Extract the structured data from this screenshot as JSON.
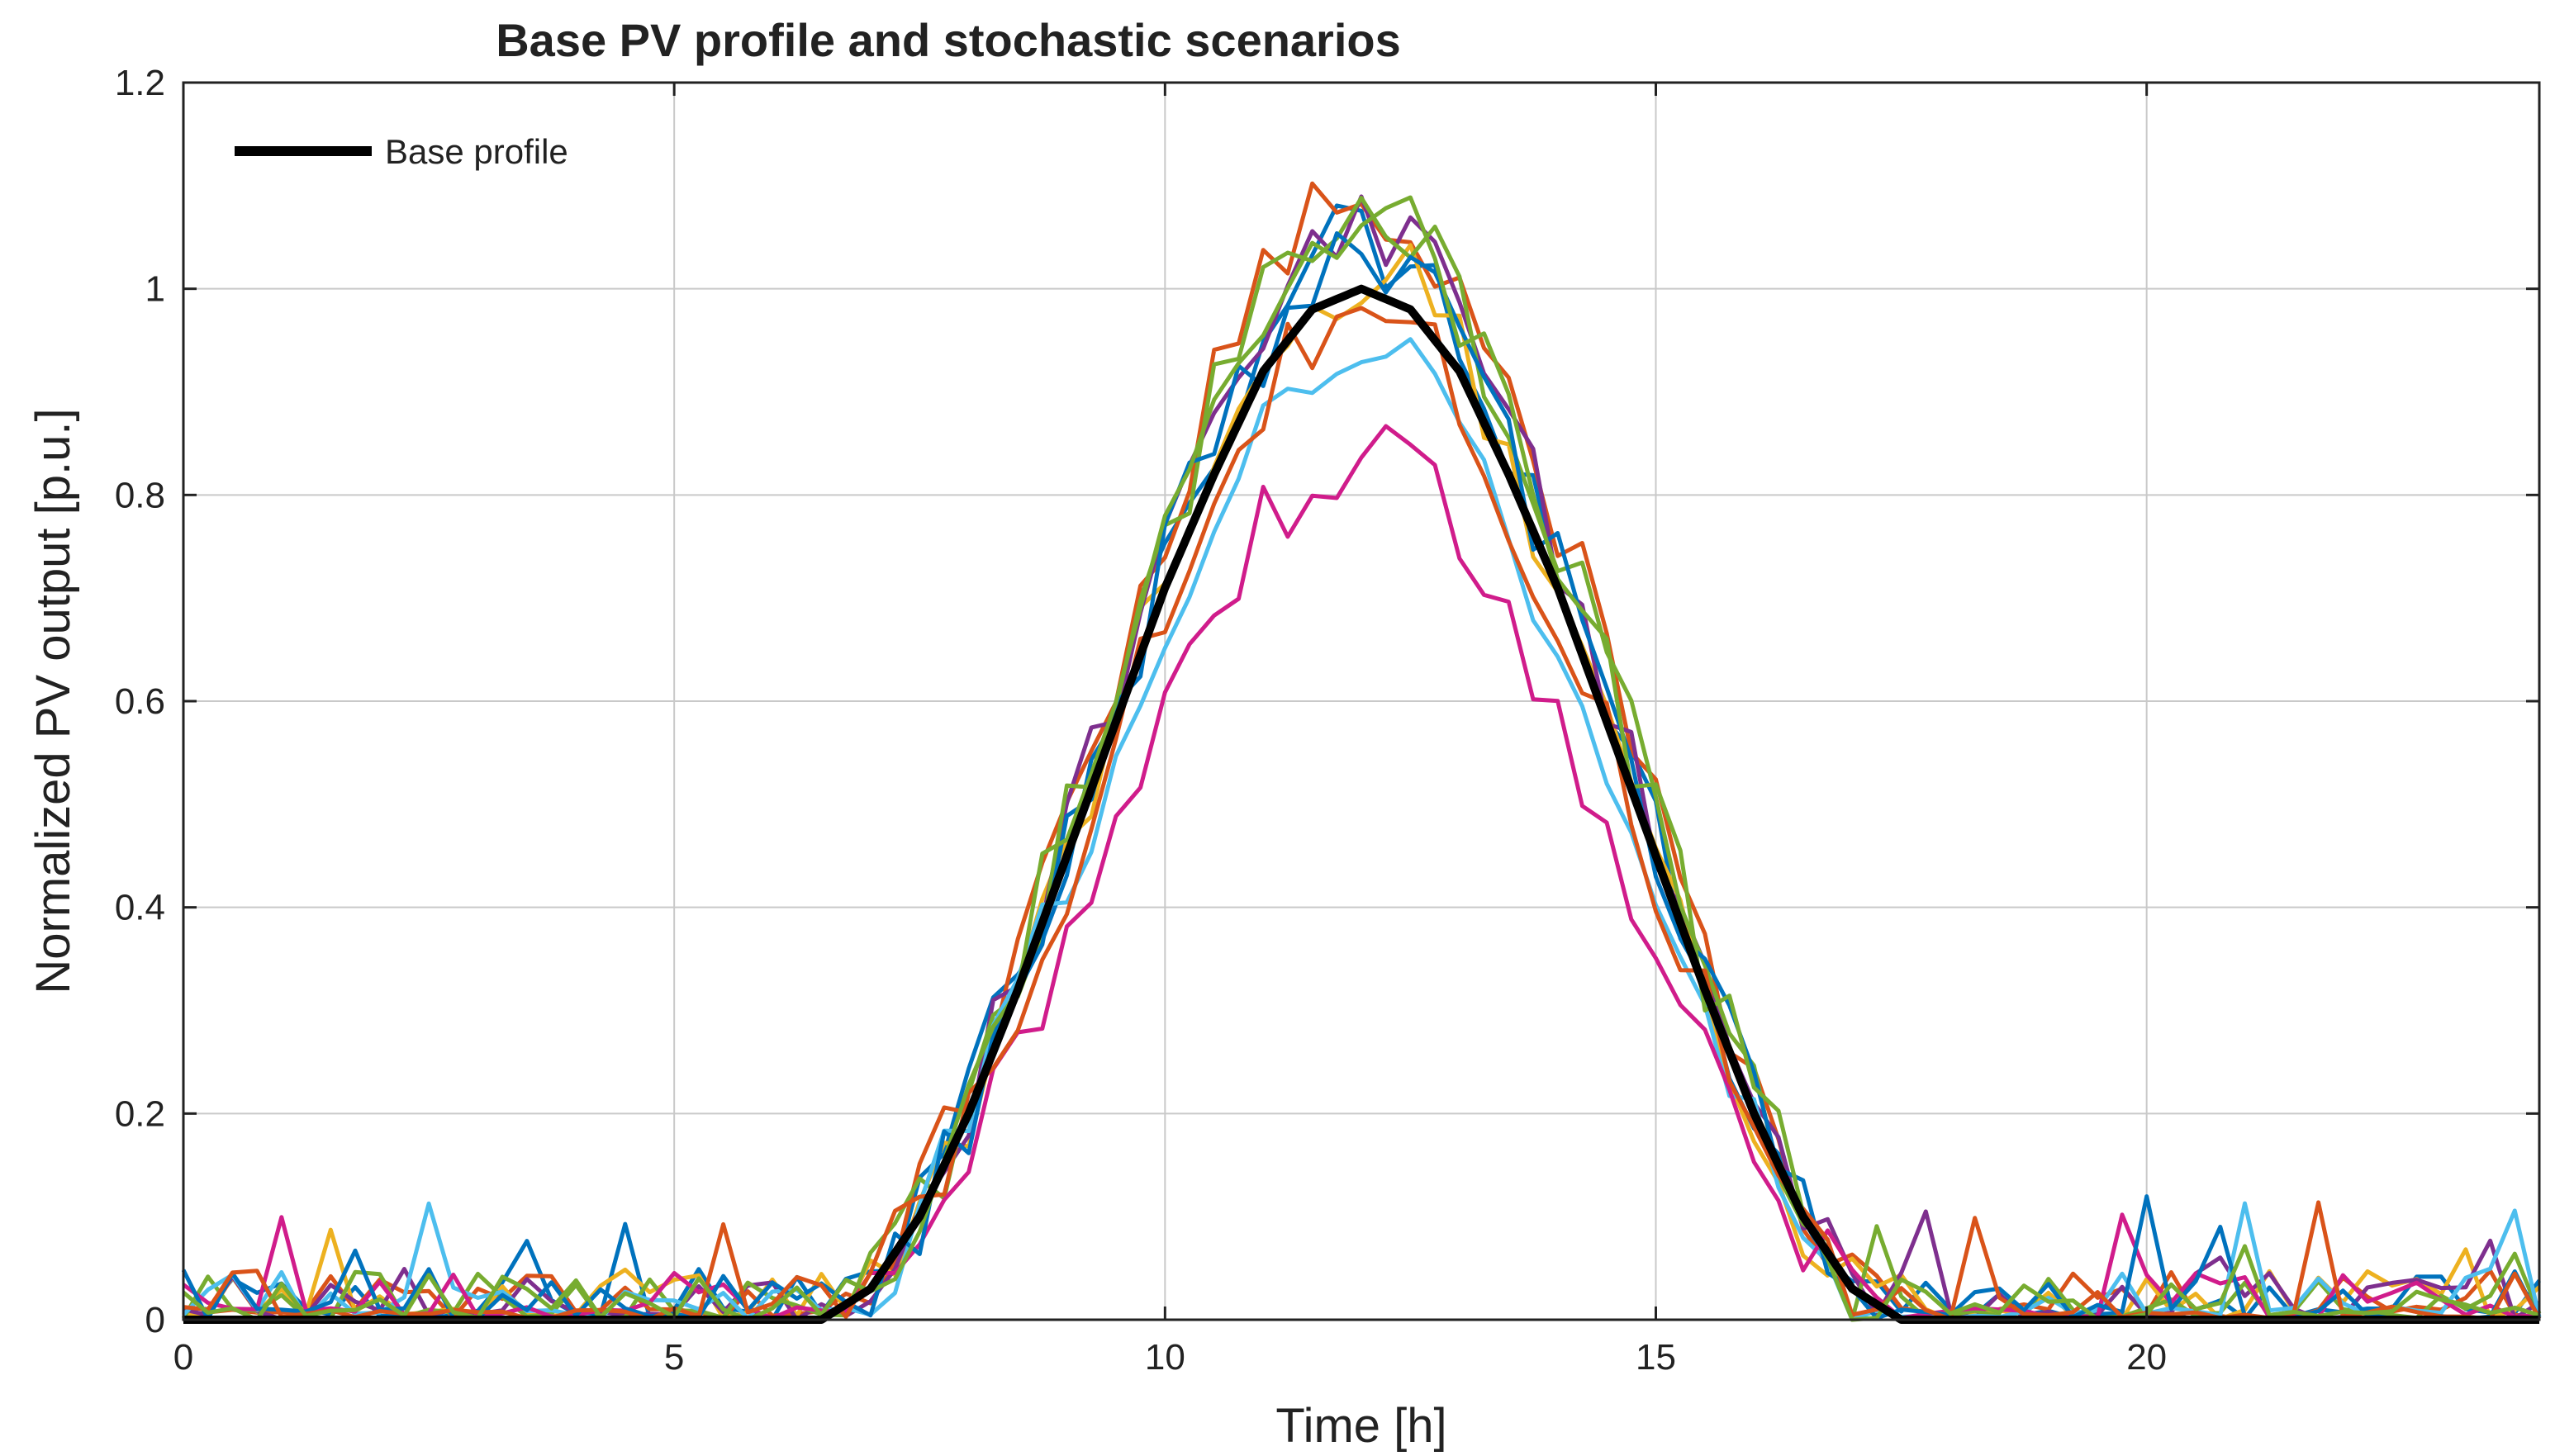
{
  "chart_data": {
    "type": "line",
    "title": "Base PV profile and stochastic scenarios",
    "xlabel": "Time [h]",
    "ylabel": "Normalized PV output [p.u.]",
    "xlim": [
      0,
      24
    ],
    "ylim": [
      0,
      1.2
    ],
    "xticks": [
      0,
      5,
      10,
      15,
      20
    ],
    "yticks": [
      0,
      0.2,
      0.4,
      0.6,
      0.8,
      1,
      1.2
    ],
    "ytick_labels": [
      "0",
      "0.2",
      "0.4",
      "0.6",
      "0.8",
      "1",
      "1.2"
    ],
    "grid": true,
    "legend": {
      "placement": "top-left",
      "entries": [
        "Base profile"
      ]
    },
    "base_profile": {
      "name": "Base profile",
      "color": "#000000",
      "x": [
        0,
        6.5,
        7.0,
        7.5,
        8.0,
        8.5,
        9.0,
        9.5,
        10.0,
        10.5,
        11.0,
        11.5,
        12.0,
        12.5,
        13.0,
        13.5,
        14.0,
        14.5,
        15.0,
        15.5,
        16.0,
        16.5,
        17.0,
        17.5,
        24
      ],
      "y": [
        0,
        0.0,
        0.03,
        0.1,
        0.2,
        0.32,
        0.45,
        0.58,
        0.71,
        0.82,
        0.92,
        0.98,
        1.0,
        0.98,
        0.92,
        0.82,
        0.71,
        0.58,
        0.45,
        0.32,
        0.2,
        0.1,
        0.03,
        0.0,
        0
      ]
    },
    "scenario_colors": [
      "#0072BD",
      "#D95319",
      "#EDB120",
      "#7E2F8E",
      "#77AC30",
      "#4DBEEE",
      "#D01C8B",
      "#0072BD",
      "#D95319",
      "#77AC30"
    ]
  }
}
